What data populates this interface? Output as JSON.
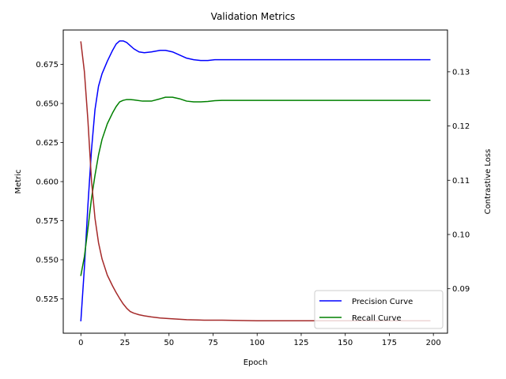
{
  "chart_data": {
    "type": "line",
    "title": "Validation Metrics",
    "xlabel": "Epoch",
    "ylabel_left": "Metric",
    "ylabel_right": "Contrastive Loss",
    "xlim": [
      -10,
      208
    ],
    "ylim_left": [
      0.503,
      0.697
    ],
    "ylim_right": [
      0.0818,
      0.1377
    ],
    "x_ticks": [
      0,
      25,
      50,
      75,
      100,
      125,
      150,
      175,
      200
    ],
    "y_ticks_left": [
      0.525,
      0.55,
      0.575,
      0.6,
      0.625,
      0.65,
      0.675
    ],
    "y_ticks_right": [
      0.09,
      0.1,
      0.11,
      0.12,
      0.13
    ],
    "grid": false,
    "legend_position": "lower-right",
    "series": [
      {
        "name": "Precision Curve",
        "axis": "left",
        "color": "#0000ff",
        "x": [
          0,
          2,
          4,
          6,
          8,
          10,
          12,
          15,
          18,
          20,
          22,
          24,
          26,
          28,
          30,
          33,
          36,
          40,
          45,
          48,
          52,
          56,
          60,
          64,
          68,
          72,
          76,
          80,
          90,
          100,
          120,
          150,
          175,
          198
        ],
        "y": [
          0.511,
          0.545,
          0.585,
          0.62,
          0.646,
          0.661,
          0.669,
          0.677,
          0.684,
          0.688,
          0.69,
          0.69,
          0.689,
          0.687,
          0.685,
          0.683,
          0.6825,
          0.683,
          0.684,
          0.684,
          0.683,
          0.681,
          0.679,
          0.678,
          0.6775,
          0.6775,
          0.678,
          0.678,
          0.678,
          0.678,
          0.678,
          0.678,
          0.678,
          0.678
        ]
      },
      {
        "name": "Recall Curve",
        "axis": "left",
        "color": "#008000",
        "x": [
          0,
          2,
          4,
          6,
          8,
          10,
          12,
          15,
          18,
          20,
          22,
          24,
          26,
          28,
          30,
          35,
          40,
          45,
          48,
          52,
          56,
          60,
          64,
          68,
          72,
          76,
          80,
          90,
          100,
          120,
          150,
          175,
          198
        ],
        "y": [
          0.54,
          0.552,
          0.57,
          0.589,
          0.604,
          0.617,
          0.627,
          0.637,
          0.644,
          0.648,
          0.651,
          0.652,
          0.6525,
          0.6525,
          0.6523,
          0.6515,
          0.6515,
          0.653,
          0.654,
          0.654,
          0.653,
          0.6515,
          0.651,
          0.651,
          0.6513,
          0.6518,
          0.652,
          0.652,
          0.652,
          0.652,
          0.652,
          0.652,
          0.652
        ]
      },
      {
        "name": "Contrastive Loss",
        "axis": "right",
        "color": "#a52a2a",
        "x": [
          0,
          2,
          4,
          6,
          8,
          10,
          12,
          15,
          18,
          20,
          22,
          24,
          26,
          28,
          30,
          33,
          36,
          40,
          45,
          50,
          60,
          70,
          80,
          100,
          125,
          150,
          175,
          198
        ],
        "y": [
          0.1355,
          0.13,
          0.121,
          0.11,
          0.103,
          0.0985,
          0.0955,
          0.0925,
          0.0905,
          0.0893,
          0.0882,
          0.0872,
          0.0864,
          0.0858,
          0.0855,
          0.0852,
          0.085,
          0.0848,
          0.0846,
          0.0845,
          0.0843,
          0.0842,
          0.0842,
          0.0841,
          0.0841,
          0.0841,
          0.0841,
          0.0841
        ]
      }
    ]
  }
}
